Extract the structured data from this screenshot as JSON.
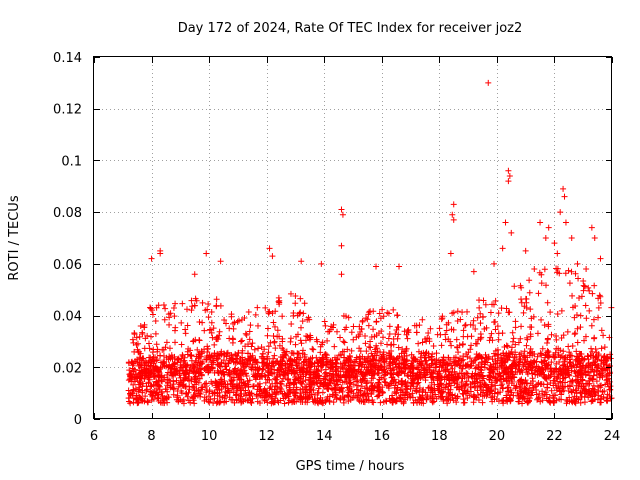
{
  "chart_data": {
    "type": "scatter",
    "title": "Day 172 of 2024, Rate Of TEC Index for receiver joz2",
    "xlabel": "GPS time / hours",
    "ylabel": "ROTI / TECUs",
    "xlim": [
      6,
      24
    ],
    "ylim": [
      0,
      0.14
    ],
    "xticks": [
      6,
      8,
      10,
      12,
      14,
      16,
      18,
      20,
      22,
      24
    ],
    "yticks": [
      0,
      0.02,
      0.04,
      0.06,
      0.08,
      0.1,
      0.12,
      0.14
    ],
    "ytick_labels": [
      "0",
      "0.02",
      "0.04",
      "0.06",
      "0.08",
      "0.1",
      "0.12",
      "0.14"
    ],
    "grid": true,
    "marker": "+",
    "color": "#ff0000",
    "series": [
      {
        "name": "ROTI",
        "density_profile": {
          "x": [
            7.2,
            8,
            9,
            10,
            11,
            12,
            13,
            14,
            15,
            16,
            17,
            18,
            19,
            20,
            21,
            22,
            23,
            24
          ],
          "baseline": [
            0.015,
            0.016,
            0.017,
            0.018,
            0.017,
            0.016,
            0.018,
            0.016,
            0.016,
            0.018,
            0.016,
            0.016,
            0.016,
            0.018,
            0.018,
            0.018,
            0.017,
            0.016
          ],
          "upper_envelope": [
            0.03,
            0.045,
            0.045,
            0.05,
            0.04,
            0.045,
            0.05,
            0.04,
            0.04,
            0.045,
            0.04,
            0.04,
            0.045,
            0.05,
            0.055,
            0.06,
            0.055,
            0.05
          ]
        },
        "outliers": [
          {
            "x": 8.0,
            "y": 0.062
          },
          {
            "x": 8.3,
            "y": 0.065
          },
          {
            "x": 8.3,
            "y": 0.064
          },
          {
            "x": 9.9,
            "y": 0.064
          },
          {
            "x": 10.4,
            "y": 0.061
          },
          {
            "x": 9.5,
            "y": 0.056
          },
          {
            "x": 12.1,
            "y": 0.066
          },
          {
            "x": 12.2,
            "y": 0.063
          },
          {
            "x": 13.2,
            "y": 0.061
          },
          {
            "x": 13.9,
            "y": 0.06
          },
          {
            "x": 14.6,
            "y": 0.081
          },
          {
            "x": 14.65,
            "y": 0.079
          },
          {
            "x": 14.6,
            "y": 0.067
          },
          {
            "x": 14.6,
            "y": 0.056
          },
          {
            "x": 15.8,
            "y": 0.059
          },
          {
            "x": 16.6,
            "y": 0.059
          },
          {
            "x": 18.5,
            "y": 0.083
          },
          {
            "x": 18.45,
            "y": 0.079
          },
          {
            "x": 18.5,
            "y": 0.077
          },
          {
            "x": 18.4,
            "y": 0.064
          },
          {
            "x": 19.2,
            "y": 0.057
          },
          {
            "x": 19.7,
            "y": 0.13
          },
          {
            "x": 20.4,
            "y": 0.096
          },
          {
            "x": 20.45,
            "y": 0.094
          },
          {
            "x": 20.4,
            "y": 0.092
          },
          {
            "x": 20.3,
            "y": 0.076
          },
          {
            "x": 20.2,
            "y": 0.066
          },
          {
            "x": 20.5,
            "y": 0.072
          },
          {
            "x": 21.0,
            "y": 0.065
          },
          {
            "x": 21.5,
            "y": 0.076
          },
          {
            "x": 21.8,
            "y": 0.074
          },
          {
            "x": 21.7,
            "y": 0.07
          },
          {
            "x": 22.0,
            "y": 0.068
          },
          {
            "x": 22.1,
            "y": 0.064
          },
          {
            "x": 22.3,
            "y": 0.089
          },
          {
            "x": 22.35,
            "y": 0.086
          },
          {
            "x": 22.2,
            "y": 0.08
          },
          {
            "x": 22.4,
            "y": 0.076
          },
          {
            "x": 22.6,
            "y": 0.07
          },
          {
            "x": 23.3,
            "y": 0.074
          },
          {
            "x": 23.4,
            "y": 0.07
          },
          {
            "x": 23.6,
            "y": 0.062
          },
          {
            "x": 23.1,
            "y": 0.058
          },
          {
            "x": 21.3,
            "y": 0.058
          },
          {
            "x": 22.8,
            "y": 0.06
          },
          {
            "x": 19.9,
            "y": 0.06
          }
        ]
      }
    ]
  }
}
